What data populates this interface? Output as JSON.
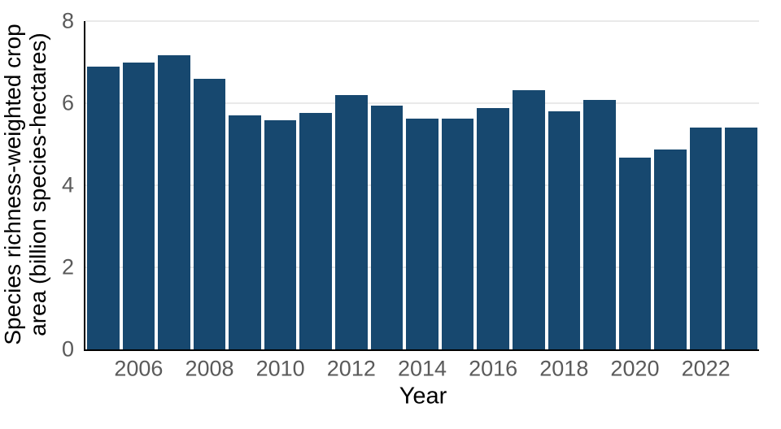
{
  "colors": {
    "bar": "#17486f",
    "gridline": "#e9e9e9",
    "tick_label": "#5a5a5a",
    "axis_label": "#000000",
    "spine": "#000000",
    "background": "#ffffff"
  },
  "chart_data": {
    "type": "bar",
    "title": "",
    "xlabel": "Year",
    "ylabel": "Species richness-weighted crop area (billion species-hectares)",
    "ylabel_lines": [
      "Species richness-weighted crop",
      "area (billion species-hectares)"
    ],
    "x": [
      2005,
      2006,
      2007,
      2008,
      2009,
      2010,
      2011,
      2012,
      2013,
      2014,
      2015,
      2016,
      2017,
      2018,
      2019,
      2020,
      2021,
      2022,
      2023
    ],
    "values": [
      6.9,
      7.0,
      7.17,
      6.59,
      5.7,
      5.58,
      5.76,
      6.2,
      5.95,
      5.62,
      5.63,
      5.89,
      6.32,
      5.8,
      6.08,
      4.68,
      4.88,
      5.41,
      5.41
    ],
    "ylim": [
      0,
      8
    ],
    "yticks": [
      0,
      2,
      4,
      6,
      8
    ],
    "xticks": [
      2006,
      2008,
      2010,
      2012,
      2014,
      2016,
      2018,
      2020,
      2022
    ],
    "grid": true,
    "legend": null
  }
}
